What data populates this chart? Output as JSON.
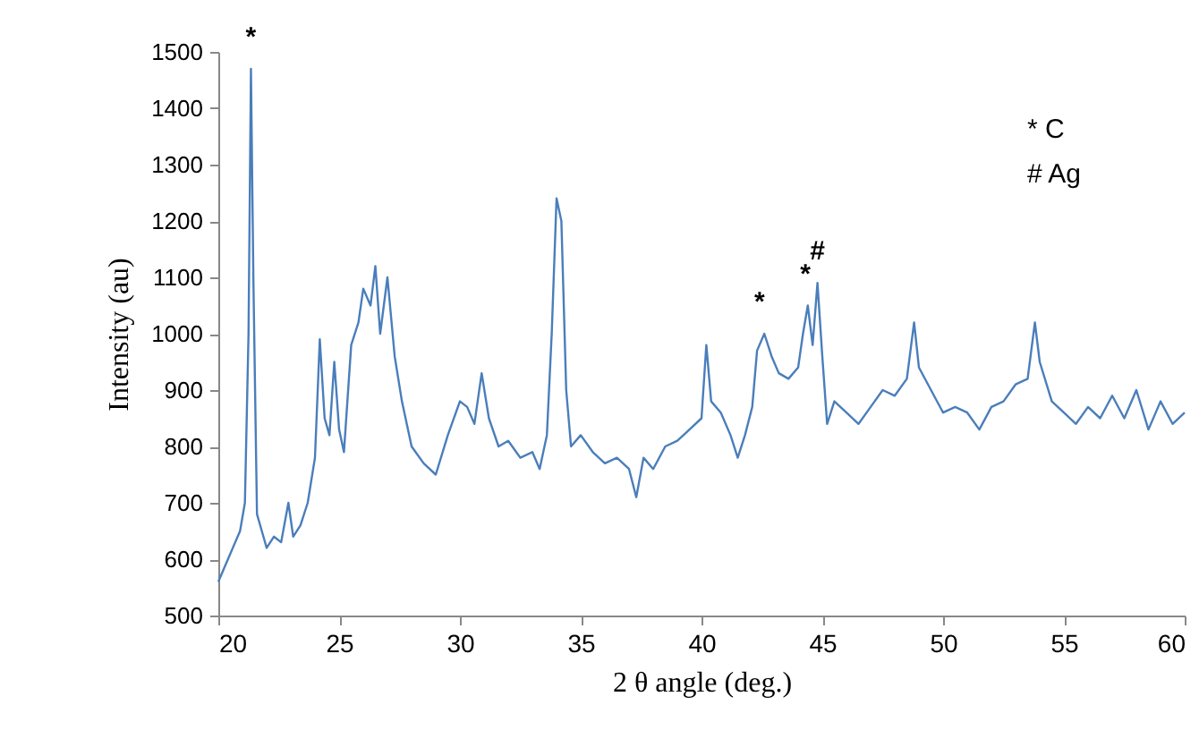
{
  "chart_data": {
    "type": "line",
    "xlabel": "2 θ angle (deg.)",
    "ylabel": "Intensity (au)",
    "xlim": [
      20,
      60
    ],
    "xticks": [
      20,
      25,
      30,
      35,
      40,
      45,
      50,
      55,
      60
    ],
    "ylim": [
      500,
      1500
    ],
    "yticks": [
      500,
      600,
      700,
      800,
      900,
      1000,
      1100,
      1200,
      1300,
      1400,
      1500
    ],
    "grid": false,
    "legend": false,
    "marker": "none",
    "line_style": "solid",
    "x": [
      20,
      20.3,
      20.6,
      20.9,
      21.1,
      21.25,
      21.35,
      21.45,
      21.6,
      21.8,
      22.0,
      22.3,
      22.6,
      22.9,
      23.1,
      23.4,
      23.7,
      24.0,
      24.2,
      24.4,
      24.6,
      24.8,
      25.0,
      25.2,
      25.5,
      25.8,
      26.0,
      26.3,
      26.5,
      26.7,
      27.0,
      27.3,
      27.6,
      28.0,
      28.5,
      29.0,
      29.5,
      30.0,
      30.3,
      30.6,
      30.9,
      31.2,
      31.6,
      32.0,
      32.5,
      33.0,
      33.3,
      33.6,
      33.8,
      34.0,
      34.2,
      34.4,
      34.6,
      35.0,
      35.5,
      36.0,
      36.5,
      37.0,
      37.3,
      37.6,
      38.0,
      38.5,
      39.0,
      39.5,
      40.0,
      40.2,
      40.4,
      40.8,
      41.2,
      41.5,
      41.8,
      42.1,
      42.3,
      42.6,
      42.9,
      43.2,
      43.6,
      44.0,
      44.2,
      44.4,
      44.6,
      44.8,
      45.0,
      45.2,
      45.5,
      46.0,
      46.5,
      47.0,
      47.5,
      48.0,
      48.5,
      48.8,
      49.0,
      49.5,
      50.0,
      50.5,
      51.0,
      51.5,
      52.0,
      52.5,
      53.0,
      53.5,
      53.8,
      54.0,
      54.5,
      55.0,
      55.5,
      56.0,
      56.5,
      57.0,
      57.5,
      58.0,
      58.5,
      59.0,
      59.5,
      60.0
    ],
    "series": [
      {
        "color": "#4a7ebb",
        "values": [
          560,
          590,
          620,
          650,
          700,
          1000,
          1470,
          1100,
          680,
          650,
          620,
          640,
          630,
          700,
          640,
          660,
          700,
          780,
          990,
          850,
          820,
          950,
          830,
          790,
          980,
          1020,
          1080,
          1050,
          1120,
          1000,
          1100,
          960,
          880,
          800,
          770,
          750,
          820,
          880,
          870,
          840,
          930,
          850,
          800,
          810,
          780,
          790,
          760,
          820,
          1000,
          1240,
          1200,
          900,
          800,
          820,
          790,
          770,
          780,
          760,
          710,
          780,
          760,
          800,
          810,
          830,
          850,
          980,
          880,
          860,
          820,
          780,
          820,
          870,
          970,
          1000,
          960,
          930,
          920,
          940,
          1000,
          1050,
          980,
          1090,
          960,
          840,
          880,
          860,
          840,
          870,
          900,
          890,
          920,
          1020,
          940,
          900,
          860,
          870,
          860,
          830,
          870,
          880,
          910,
          920,
          1020,
          950,
          880,
          860,
          840,
          870,
          850,
          890,
          850,
          900,
          830,
          880,
          840,
          860
        ]
      }
    ],
    "annotations": [
      {
        "text": "*",
        "x": 21.35,
        "y": 1470
      },
      {
        "text": "*",
        "x": 42.4,
        "y": 1000
      },
      {
        "text": "*",
        "x": 44.3,
        "y": 1050
      },
      {
        "text": "#",
        "x": 44.8,
        "y": 1090
      },
      "* C",
      "# Ag"
    ]
  }
}
